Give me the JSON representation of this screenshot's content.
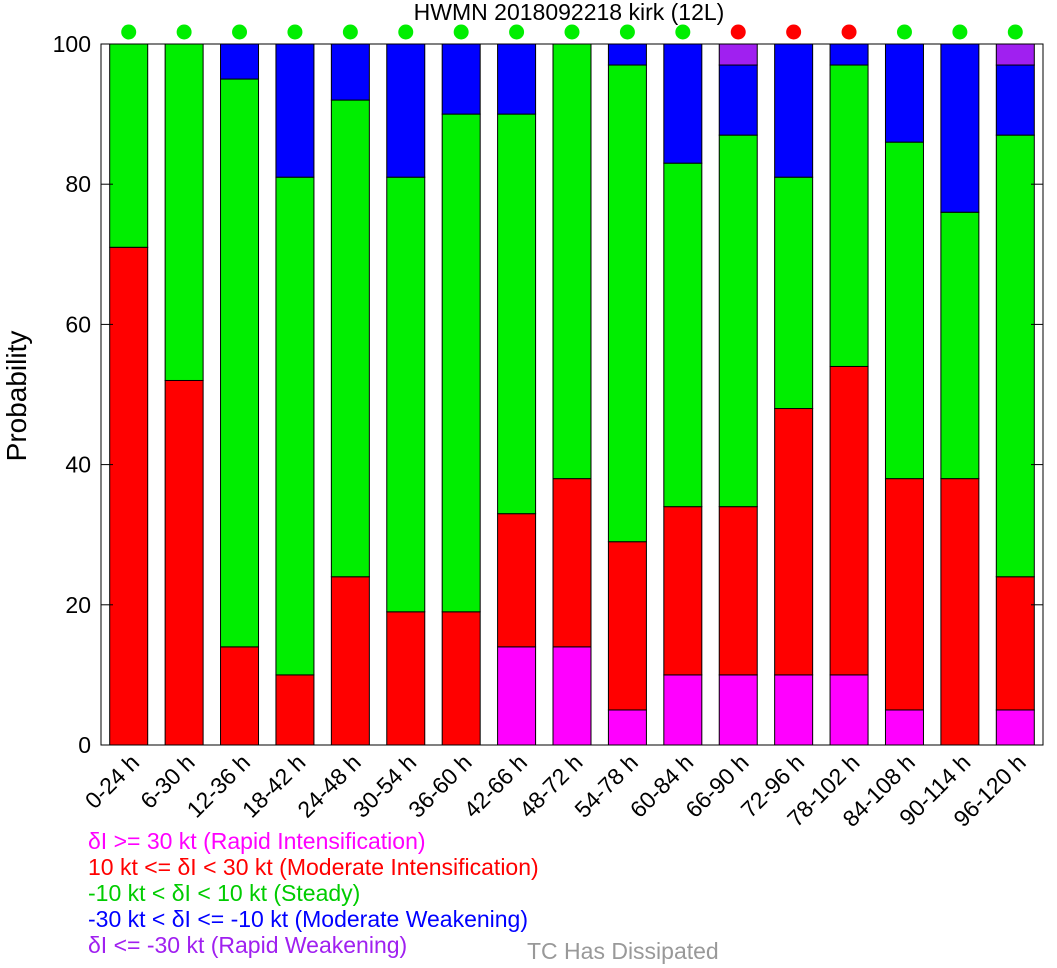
{
  "chart_data": {
    "type": "bar",
    "stacked": true,
    "title": "HWMN 2018092218 kirk (12L)",
    "ylabel": "Probability",
    "xlabel": "",
    "ylim": [
      0,
      100
    ],
    "yticks": [
      0,
      20,
      40,
      60,
      80,
      100
    ],
    "grid": false,
    "categories": [
      "0-24 h",
      "6-30 h",
      "12-36 h",
      "18-42 h",
      "24-48 h",
      "30-54 h",
      "36-60 h",
      "42-66 h",
      "48-72 h",
      "54-78 h",
      "60-84 h",
      "66-90 h",
      "72-96 h",
      "78-102 h",
      "84-108 h",
      "90-114 h",
      "96-120 h"
    ],
    "series": [
      {
        "name": "δI >= 30 kt (Rapid Intensification)",
        "color": "#ff00ff",
        "values": [
          0,
          0,
          0,
          0,
          0,
          0,
          0,
          14,
          14,
          5,
          10,
          10,
          10,
          10,
          5,
          0,
          5
        ]
      },
      {
        "name": "10 kt <= δI < 30 kt (Moderate Intensification)",
        "color": "#ff0000",
        "values": [
          71,
          52,
          14,
          10,
          24,
          19,
          19,
          19,
          24,
          24,
          24,
          24,
          38,
          44,
          33,
          38,
          19
        ]
      },
      {
        "name": "-10 kt < δI < 10 kt (Steady)",
        "color": "#00ee00",
        "values": [
          29,
          48,
          81,
          71,
          68,
          62,
          71,
          57,
          62,
          68,
          49,
          53,
          33,
          43,
          48,
          38,
          63
        ]
      },
      {
        "name": "-30 kt < δI <= -10 kt (Moderate Weakening)",
        "color": "#0000ff",
        "values": [
          0,
          0,
          5,
          19,
          8,
          19,
          10,
          10,
          0,
          3,
          17,
          10,
          19,
          3,
          14,
          24,
          10
        ]
      },
      {
        "name": "δI <= -30 kt (Rapid Weakening)",
        "color": "#a020f0",
        "values": [
          0,
          0,
          0,
          0,
          0,
          0,
          0,
          0,
          0,
          0,
          0,
          3,
          0,
          0,
          0,
          0,
          3
        ]
      }
    ],
    "indicator_dots": [
      "#00ee00",
      "#00ee00",
      "#00ee00",
      "#00ee00",
      "#00ee00",
      "#00ee00",
      "#00ee00",
      "#00ee00",
      "#00ee00",
      "#00ee00",
      "#00ee00",
      "#ff0000",
      "#ff0000",
      "#ff0000",
      "#00ee00",
      "#00ee00",
      "#00ee00"
    ],
    "legend_position": "bottom-left",
    "dissipated_label": "TC Has Dissipated",
    "dissipated_color": "#999999"
  }
}
